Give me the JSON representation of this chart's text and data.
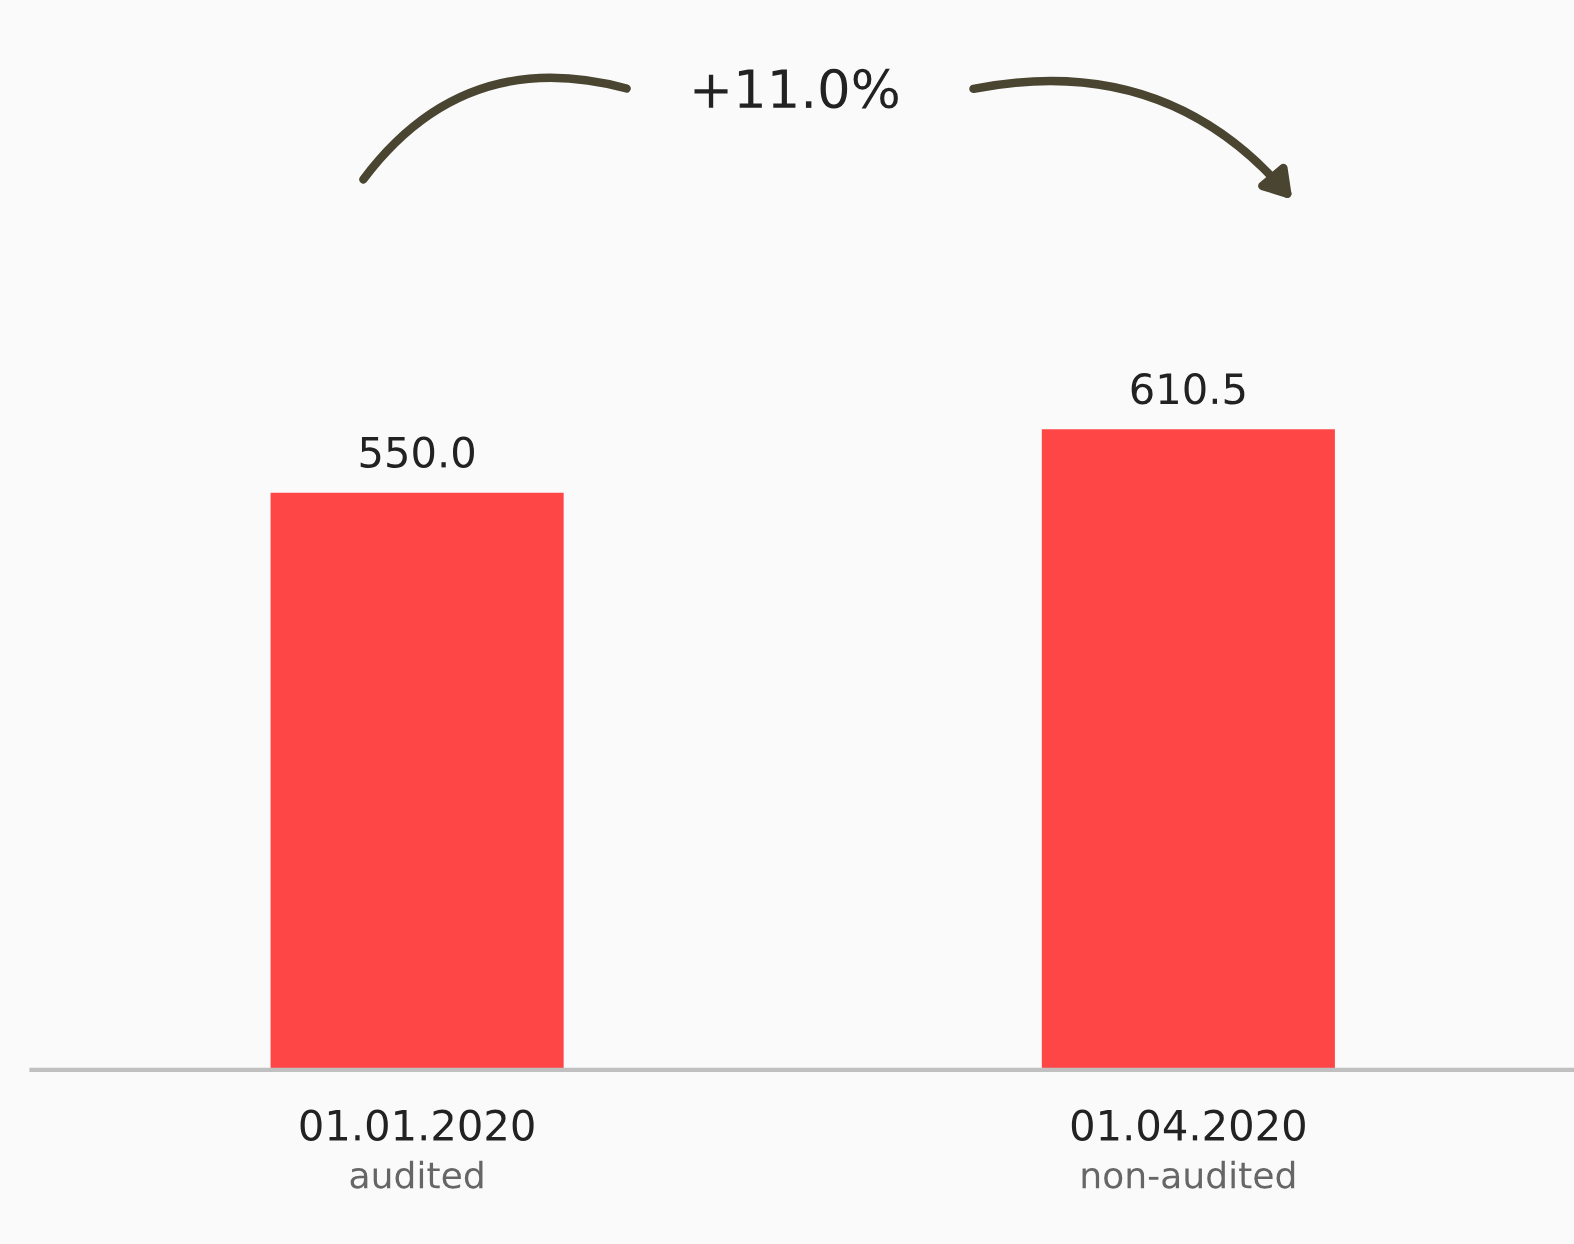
{
  "chart_data": {
    "type": "bar",
    "categories": [
      "01.01.2020",
      "01.04.2020"
    ],
    "values": [
      550.0,
      610.5
    ],
    "color": "#ff4646",
    "value_labels": [
      "550.0",
      "610.5"
    ],
    "annotations": [
      "audited",
      "non-audited",
      "+11.0%"
    ]
  }
}
